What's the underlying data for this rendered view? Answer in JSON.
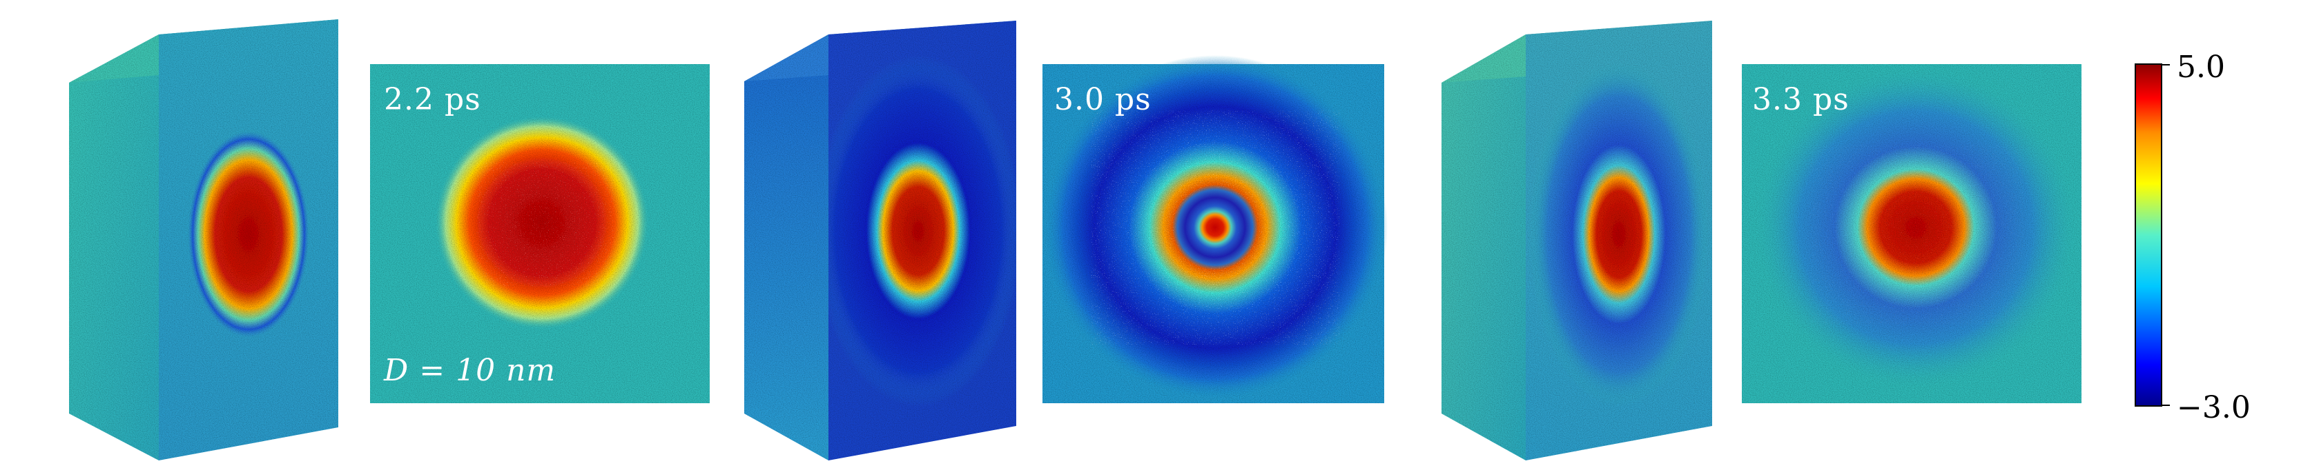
{
  "panels": [
    {
      "time_label": "2.2 ps",
      "size_label": "D = 10 nm"
    },
    {
      "time_label": "3.0 ps"
    },
    {
      "time_label": "3.3 ps"
    }
  ],
  "colorbar": {
    "max_label": "5.0",
    "min_label": "−3.0"
  },
  "colors": {
    "background_teal": "#2eb8b6",
    "deep_blue": "#1d2fd0",
    "hot_red": "#b00000",
    "colorbar_stops": [
      "#00008b",
      "#0000ff",
      "#00c8ff",
      "#58f0c8",
      "#ffff00",
      "#ff8c00",
      "#ff0000",
      "#8b0000"
    ]
  }
}
